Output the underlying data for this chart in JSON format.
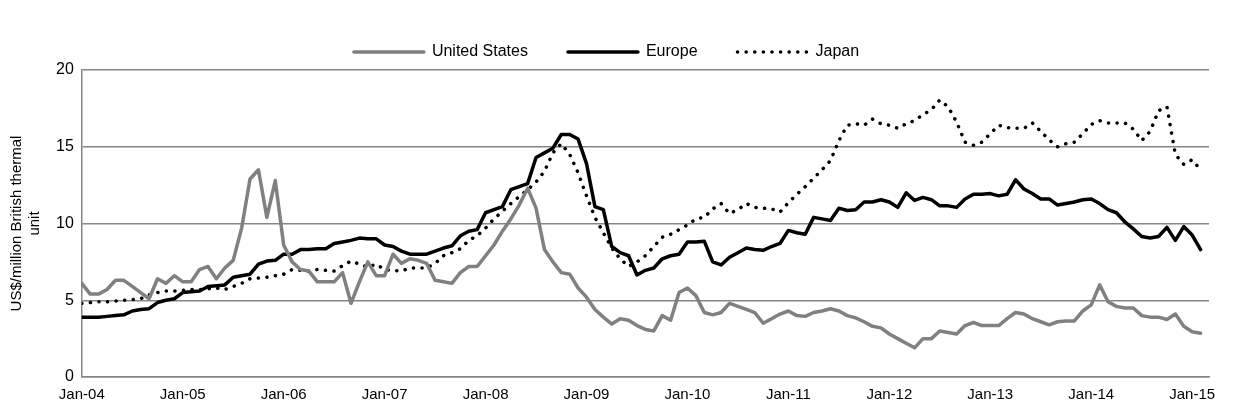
{
  "chart_data": {
    "type": "line",
    "ylabel": "US$/million British thermal unit",
    "x": [
      "2004-01",
      "2004-02",
      "2004-03",
      "2004-04",
      "2004-05",
      "2004-06",
      "2004-07",
      "2004-08",
      "2004-09",
      "2004-10",
      "2004-11",
      "2004-12",
      "2005-01",
      "2005-02",
      "2005-03",
      "2005-04",
      "2005-05",
      "2005-06",
      "2005-07",
      "2005-08",
      "2005-09",
      "2005-10",
      "2005-11",
      "2005-12",
      "2006-01",
      "2006-02",
      "2006-03",
      "2006-04",
      "2006-05",
      "2006-06",
      "2006-07",
      "2006-08",
      "2006-09",
      "2006-10",
      "2006-11",
      "2006-12",
      "2007-01",
      "2007-02",
      "2007-03",
      "2007-04",
      "2007-05",
      "2007-06",
      "2007-07",
      "2007-08",
      "2007-09",
      "2007-10",
      "2007-11",
      "2007-12",
      "2008-01",
      "2008-02",
      "2008-03",
      "2008-04",
      "2008-05",
      "2008-06",
      "2008-07",
      "2008-08",
      "2008-09",
      "2008-10",
      "2008-11",
      "2008-12",
      "2009-01",
      "2009-02",
      "2009-03",
      "2009-04",
      "2009-05",
      "2009-06",
      "2009-07",
      "2009-08",
      "2009-09",
      "2009-10",
      "2009-11",
      "2009-12",
      "2010-01",
      "2010-02",
      "2010-03",
      "2010-04",
      "2010-05",
      "2010-06",
      "2010-07",
      "2010-08",
      "2010-09",
      "2010-10",
      "2010-11",
      "2010-12",
      "2011-01",
      "2011-02",
      "2011-03",
      "2011-04",
      "2011-05",
      "2011-06",
      "2011-07",
      "2011-08",
      "2011-09",
      "2011-10",
      "2011-11",
      "2011-12",
      "2012-01",
      "2012-02",
      "2012-03",
      "2012-04",
      "2012-05",
      "2012-06",
      "2012-07",
      "2012-08",
      "2012-09",
      "2012-10",
      "2012-11",
      "2012-12",
      "2013-01",
      "2013-02",
      "2013-03",
      "2013-04",
      "2013-05",
      "2013-06",
      "2013-07",
      "2013-08",
      "2013-09",
      "2013-10",
      "2013-11",
      "2013-12",
      "2014-01",
      "2014-02",
      "2014-03",
      "2014-04",
      "2014-05",
      "2014-06",
      "2014-07",
      "2014-08",
      "2014-09",
      "2014-10",
      "2014-11",
      "2014-12",
      "2015-01",
      "2015-02"
    ],
    "series": [
      {
        "name": "United States",
        "color": "#808080",
        "line_style": "solid",
        "values": [
          6.1,
          5.4,
          5.4,
          5.7,
          6.3,
          6.3,
          5.9,
          5.5,
          5.1,
          6.4,
          6.1,
          6.6,
          6.2,
          6.2,
          7.0,
          7.2,
          6.4,
          7.1,
          7.6,
          9.7,
          12.9,
          13.5,
          10.4,
          12.8,
          8.6,
          7.5,
          7.0,
          6.9,
          6.2,
          6.2,
          6.2,
          6.8,
          4.8,
          6.2,
          7.5,
          6.6,
          6.6,
          8.0,
          7.4,
          7.7,
          7.6,
          7.4,
          6.3,
          6.2,
          6.1,
          6.8,
          7.2,
          7.2,
          7.9,
          8.6,
          9.5,
          10.3,
          11.2,
          12.3,
          11.0,
          8.3,
          7.5,
          6.8,
          6.7,
          5.8,
          5.2,
          4.4,
          3.9,
          3.45,
          3.8,
          3.7,
          3.35,
          3.1,
          3.0,
          4.0,
          3.7,
          5.5,
          5.8,
          5.3,
          4.2,
          4.05,
          4.2,
          4.8,
          4.6,
          4.4,
          4.2,
          3.5,
          3.8,
          4.1,
          4.3,
          4.0,
          3.95,
          4.2,
          4.3,
          4.45,
          4.3,
          4.0,
          3.85,
          3.6,
          3.3,
          3.2,
          2.8,
          2.5,
          2.2,
          1.9,
          2.5,
          2.5,
          3.0,
          2.9,
          2.8,
          3.35,
          3.55,
          3.35,
          3.35,
          3.35,
          3.8,
          4.2,
          4.1,
          3.8,
          3.6,
          3.4,
          3.6,
          3.65,
          3.65,
          4.3,
          4.7,
          6.0,
          4.9,
          4.6,
          4.5,
          4.5,
          4.0,
          3.9,
          3.9,
          3.75,
          4.1,
          3.3,
          2.95,
          2.85
        ]
      },
      {
        "name": "Europe",
        "color": "#000000",
        "line_style": "solid",
        "values": [
          3.9,
          3.9,
          3.9,
          3.95,
          4.0,
          4.05,
          4.3,
          4.4,
          4.45,
          4.85,
          5.0,
          5.1,
          5.5,
          5.55,
          5.6,
          5.9,
          5.95,
          6.0,
          6.5,
          6.6,
          6.7,
          7.35,
          7.55,
          7.6,
          8.0,
          8.0,
          8.3,
          8.3,
          8.35,
          8.35,
          8.7,
          8.8,
          8.9,
          9.05,
          9.0,
          9.0,
          8.6,
          8.5,
          8.2,
          8.0,
          8.0,
          8.0,
          8.2,
          8.4,
          8.55,
          9.2,
          9.5,
          9.6,
          10.7,
          10.9,
          11.1,
          12.2,
          12.4,
          12.6,
          14.3,
          14.6,
          14.9,
          15.8,
          15.8,
          15.5,
          13.9,
          11.1,
          10.9,
          8.5,
          8.1,
          7.9,
          6.65,
          6.95,
          7.1,
          7.7,
          7.9,
          8.0,
          8.8,
          8.8,
          8.85,
          7.5,
          7.3,
          7.8,
          8.1,
          8.4,
          8.3,
          8.25,
          8.5,
          8.7,
          9.55,
          9.4,
          9.3,
          10.4,
          10.3,
          10.2,
          11.0,
          10.85,
          10.9,
          11.4,
          11.4,
          11.55,
          11.4,
          11.05,
          12.0,
          11.5,
          11.7,
          11.55,
          11.15,
          11.15,
          11.05,
          11.6,
          11.9,
          11.9,
          11.95,
          11.8,
          11.9,
          12.85,
          12.25,
          11.95,
          11.6,
          11.6,
          11.2,
          11.3,
          11.4,
          11.55,
          11.6,
          11.3,
          10.9,
          10.7,
          10.1,
          9.65,
          9.15,
          9.05,
          9.15,
          9.75,
          8.9,
          9.8,
          9.25,
          8.3
        ]
      },
      {
        "name": "Japan",
        "color": "#000000",
        "line_style": "dotted",
        "values": [
          4.8,
          4.85,
          4.9,
          4.9,
          4.95,
          5.0,
          5.05,
          5.1,
          5.35,
          5.5,
          5.6,
          5.6,
          5.65,
          5.7,
          5.7,
          5.75,
          5.8,
          5.7,
          5.9,
          6.1,
          6.4,
          6.45,
          6.5,
          6.6,
          6.7,
          7.0,
          6.95,
          6.9,
          7.0,
          6.95,
          6.9,
          7.25,
          7.55,
          7.35,
          7.15,
          7.35,
          7.0,
          6.95,
          6.9,
          7.1,
          7.1,
          7.1,
          7.4,
          7.9,
          8.1,
          8.35,
          8.9,
          9.2,
          9.7,
          10.3,
          10.8,
          11.3,
          11.75,
          12.2,
          12.7,
          13.4,
          14.6,
          15.2,
          14.5,
          13.3,
          11.8,
          10.4,
          9.4,
          8.4,
          7.7,
          7.2,
          7.5,
          7.9,
          8.5,
          9.1,
          9.3,
          9.6,
          9.9,
          10.3,
          10.4,
          10.95,
          11.3,
          10.65,
          10.9,
          11.3,
          11.05,
          11.0,
          10.95,
          10.75,
          11.35,
          11.9,
          12.4,
          12.95,
          13.5,
          14.1,
          15.4,
          16.4,
          16.5,
          16.4,
          16.8,
          16.5,
          16.4,
          16.2,
          16.5,
          16.7,
          17.1,
          17.4,
          18.05,
          17.6,
          16.6,
          15.3,
          15.1,
          15.3,
          15.85,
          16.4,
          16.25,
          16.2,
          16.2,
          16.55,
          16.0,
          15.45,
          15.0,
          15.2,
          15.3,
          15.85,
          16.45,
          16.7,
          16.55,
          16.55,
          16.55,
          16.15,
          15.4,
          16.0,
          17.35,
          17.6,
          14.5,
          13.85,
          14.15,
          13.5
        ]
      }
    ],
    "xlim": [
      "2004-01",
      "2015-03"
    ],
    "xticks": [
      {
        "value": "2004-01",
        "label": "Jan-04"
      },
      {
        "value": "2005-01",
        "label": "Jan-05"
      },
      {
        "value": "2006-01",
        "label": "Jan-06"
      },
      {
        "value": "2007-01",
        "label": "Jan-07"
      },
      {
        "value": "2008-01",
        "label": "Jan-08"
      },
      {
        "value": "2009-01",
        "label": "Jan-09"
      },
      {
        "value": "2010-01",
        "label": "Jan-10"
      },
      {
        "value": "2011-01",
        "label": "Jan-11"
      },
      {
        "value": "2012-01",
        "label": "Jan-12"
      },
      {
        "value": "2013-01",
        "label": "Jan-13"
      },
      {
        "value": "2014-01",
        "label": "Jan-14"
      },
      {
        "value": "2015-01",
        "label": "Jan-15"
      }
    ],
    "ylim": [
      0,
      20
    ],
    "yticks": [
      0,
      5,
      10,
      15,
      20
    ],
    "grid": "y",
    "legend": "top",
    "marker": "none"
  }
}
